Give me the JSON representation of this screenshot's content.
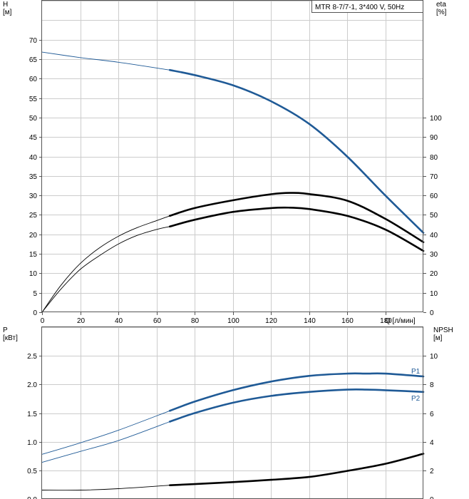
{
  "chart_data": [
    {
      "type": "line",
      "title": "MTR 8-7/7-1, 3*400 V, 50Hz",
      "xlabel": "Q [л/мин]",
      "ylabel": "H\n[м]",
      "ylabel_right": "eta\n[%]",
      "xlim": [
        0,
        200
      ],
      "ylim": [
        0,
        80
      ],
      "ylim_right": [
        0,
        160
      ],
      "x_ticks": [
        "0",
        "20",
        "40",
        "60",
        "80",
        "100",
        "120",
        "140",
        "160",
        "180"
      ],
      "y_ticks": [
        "0",
        "5",
        "10",
        "15",
        "20",
        "25",
        "30",
        "35",
        "40",
        "45",
        "50",
        "55",
        "60",
        "65",
        "70"
      ],
      "y_ticks_right": [
        "0",
        "10",
        "20",
        "30",
        "40",
        "50",
        "60",
        "70",
        "80",
        "90",
        "100"
      ],
      "grid": true,
      "series": [
        {
          "axis": "left",
          "color": "#1f5a96",
          "extrapolated_until": 67,
          "x": [
            0,
            20,
            40,
            67,
            80,
            100,
            120,
            140,
            160,
            180,
            200
          ],
          "y": [
            66.8,
            65.4,
            64.2,
            62.2,
            60.9,
            58.3,
            54.2,
            48.4,
            40.0,
            30.0,
            20.4
          ]
        },
        {
          "axis": "right",
          "color": "#000000",
          "extrapolated_until": 67,
          "x": [
            0,
            10,
            20,
            30,
            40,
            50,
            60,
            67,
            80,
            100,
            120,
            130,
            140,
            160,
            180,
            200
          ],
          "y": [
            0,
            14.0,
            25.0,
            33.0,
            39.0,
            43.5,
            47.0,
            49.5,
            53.5,
            57.5,
            60.6,
            61.3,
            60.7,
            57.3,
            48.0,
            36.0
          ]
        },
        {
          "axis": "right",
          "color": "#000000",
          "extrapolated_until": 67,
          "x": [
            0,
            10,
            20,
            30,
            40,
            50,
            60,
            67,
            80,
            100,
            120,
            130,
            140,
            160,
            180,
            200
          ],
          "y": [
            0,
            12.0,
            22.0,
            29.0,
            35.0,
            39.5,
            42.5,
            44.0,
            47.5,
            51.5,
            53.5,
            53.7,
            53.0,
            49.5,
            42.5,
            31.5
          ]
        }
      ]
    },
    {
      "type": "line",
      "xlabel": "",
      "ylabel": "P\n[кВт]",
      "ylabel_right": "NPSH\n[м]",
      "xlim": [
        0,
        200
      ],
      "ylim": [
        0,
        3
      ],
      "ylim_right": [
        0,
        12
      ],
      "y_ticks": [
        "0.0",
        "0.5",
        "1.0",
        "1.5",
        "2.0",
        "2.5"
      ],
      "y_ticks_right": [
        "0",
        "2",
        "4",
        "6",
        "8",
        "10"
      ],
      "grid": true,
      "series": [
        {
          "name": "P1",
          "axis": "left",
          "color": "#1f5a96",
          "extrapolated_until": 67,
          "x": [
            0,
            20,
            40,
            67,
            80,
            100,
            120,
            140,
            160,
            170,
            180,
            200
          ],
          "y": [
            0.78,
            0.98,
            1.2,
            1.54,
            1.7,
            1.9,
            2.05,
            2.15,
            2.19,
            2.19,
            2.19,
            2.14
          ]
        },
        {
          "name": "P2",
          "axis": "left",
          "color": "#1f5a96",
          "extrapolated_until": 67,
          "x": [
            0,
            20,
            40,
            67,
            80,
            100,
            120,
            140,
            160,
            170,
            180,
            200
          ],
          "y": [
            0.64,
            0.83,
            1.02,
            1.35,
            1.5,
            1.68,
            1.8,
            1.87,
            1.91,
            1.91,
            1.9,
            1.87
          ]
        },
        {
          "axis": "right",
          "color": "#000000",
          "extrapolated_until": 67,
          "x": [
            0,
            20,
            40,
            67,
            80,
            100,
            120,
            140,
            160,
            180,
            200
          ],
          "y": [
            0.62,
            0.62,
            0.72,
            0.96,
            1.04,
            1.18,
            1.34,
            1.54,
            1.96,
            2.46,
            3.16
          ]
        }
      ]
    }
  ]
}
